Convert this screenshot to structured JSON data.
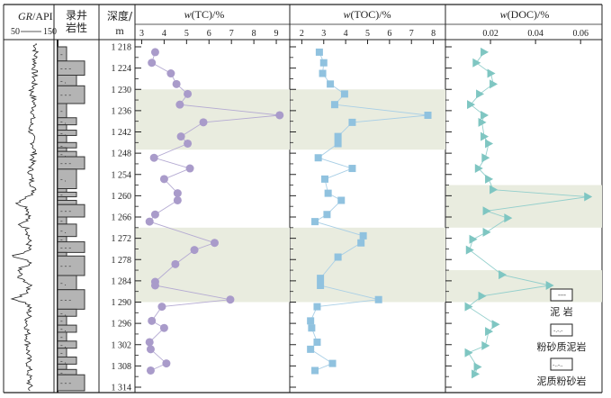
{
  "chart_data": {
    "type": "scatter",
    "title": "",
    "depth_axis": {
      "label_line1": "深度/",
      "label_line2": "m",
      "range": [
        1216,
        1316
      ],
      "ticks": [
        1218,
        1224,
        1230,
        1236,
        1242,
        1248,
        1254,
        1260,
        1266,
        1272,
        1278,
        1284,
        1290,
        1296,
        1302,
        1308,
        1314
      ],
      "tick_labels": [
        "1 218",
        "1 224",
        "1 230",
        "1 236",
        "1 242",
        "1 248",
        "1 254",
        "1 260",
        "1 266",
        "1 272",
        "1 278",
        "1 284",
        "1 290",
        "1 296",
        "1 302",
        "1 308",
        "1 314"
      ]
    },
    "gr_track": {
      "label_italic": "GR",
      "label_rest": "/API",
      "scale_min": "50",
      "scale_max": "150",
      "range": [
        50,
        150
      ]
    },
    "lithology_track": {
      "label_line1": "录井",
      "label_line2": "岩性"
    },
    "panels": [
      {
        "name": "TC",
        "title_prefix": "w",
        "title_rest": "(TC)/%",
        "xlim": [
          2.7,
          9.6
        ],
        "xticks": [
          3,
          4,
          5,
          6,
          7,
          8,
          9
        ],
        "marker": "circle",
        "color": "#a99bca",
        "line_color": "#b5abd3",
        "shaded_bands": [
          [
            1230,
            1247
          ],
          [
            1269,
            1290
          ]
        ],
        "points": [
          {
            "depth": 1219.5,
            "value": 3.6
          },
          {
            "depth": 1222.5,
            "value": 3.45
          },
          {
            "depth": 1225.5,
            "value": 4.3
          },
          {
            "depth": 1228.5,
            "value": 4.55
          },
          {
            "depth": 1231.3,
            "value": 5.05
          },
          {
            "depth": 1234.3,
            "value": 4.7
          },
          {
            "depth": 1237.3,
            "value": 9.15
          },
          {
            "depth": 1239.3,
            "value": 5.75
          },
          {
            "depth": 1243.3,
            "value": 4.75
          },
          {
            "depth": 1245.3,
            "value": 5.05
          },
          {
            "depth": 1249.3,
            "value": 3.55
          },
          {
            "depth": 1252.3,
            "value": 5.15
          },
          {
            "depth": 1255.3,
            "value": 4.0
          },
          {
            "depth": 1259.3,
            "value": 4.6
          },
          {
            "depth": 1261.3,
            "value": 4.6
          },
          {
            "depth": 1265.3,
            "value": 3.6
          },
          {
            "depth": 1267.3,
            "value": 3.35
          },
          {
            "depth": 1273.3,
            "value": 6.25
          },
          {
            "depth": 1275.3,
            "value": 5.35
          },
          {
            "depth": 1279.3,
            "value": 4.5
          },
          {
            "depth": 1284.3,
            "value": 3.6
          },
          {
            "depth": 1285.3,
            "value": 3.6
          },
          {
            "depth": 1289.3,
            "value": 6.95
          },
          {
            "depth": 1291.3,
            "value": 3.9
          },
          {
            "depth": 1295.3,
            "value": 3.45
          },
          {
            "depth": 1297.3,
            "value": 4.0
          },
          {
            "depth": 1301.3,
            "value": 3.35
          },
          {
            "depth": 1303.3,
            "value": 3.4
          },
          {
            "depth": 1307.3,
            "value": 4.1
          },
          {
            "depth": 1309.3,
            "value": 3.4
          }
        ]
      },
      {
        "name": "TOC",
        "title_prefix": "w",
        "title_rest": "(TOC)/%",
        "xlim": [
          1.45,
          8.55
        ],
        "xticks": [
          2,
          3,
          4,
          5,
          6,
          7,
          8
        ],
        "marker": "square",
        "color": "#90c2df",
        "line_color": "#a9cfe6",
        "shaded_bands": [
          [
            1230,
            1247
          ],
          [
            1269,
            1290
          ]
        ],
        "points": [
          {
            "depth": 1219.5,
            "value": 2.8
          },
          {
            "depth": 1222.5,
            "value": 3.0
          },
          {
            "depth": 1225.5,
            "value": 2.95
          },
          {
            "depth": 1228.5,
            "value": 3.3
          },
          {
            "depth": 1231.3,
            "value": 3.95
          },
          {
            "depth": 1234.3,
            "value": 3.5
          },
          {
            "depth": 1237.3,
            "value": 7.75
          },
          {
            "depth": 1239.3,
            "value": 4.3
          },
          {
            "depth": 1243.3,
            "value": 3.65
          },
          {
            "depth": 1245.3,
            "value": 3.65
          },
          {
            "depth": 1249.3,
            "value": 2.75
          },
          {
            "depth": 1252.3,
            "value": 4.3
          },
          {
            "depth": 1255.3,
            "value": 3.05
          },
          {
            "depth": 1259.3,
            "value": 3.2
          },
          {
            "depth": 1261.3,
            "value": 3.8
          },
          {
            "depth": 1265.3,
            "value": 3.15
          },
          {
            "depth": 1267.3,
            "value": 2.6
          },
          {
            "depth": 1271.3,
            "value": 4.8
          },
          {
            "depth": 1273.3,
            "value": 4.7
          },
          {
            "depth": 1277.3,
            "value": 3.65
          },
          {
            "depth": 1283.3,
            "value": 2.85
          },
          {
            "depth": 1285.3,
            "value": 2.85
          },
          {
            "depth": 1289.3,
            "value": 5.5
          },
          {
            "depth": 1291.3,
            "value": 2.7
          },
          {
            "depth": 1295.3,
            "value": 2.4
          },
          {
            "depth": 1297.3,
            "value": 2.45
          },
          {
            "depth": 1301.3,
            "value": 2.7
          },
          {
            "depth": 1303.3,
            "value": 2.4
          },
          {
            "depth": 1307.3,
            "value": 3.4
          },
          {
            "depth": 1309.3,
            "value": 2.6
          }
        ]
      },
      {
        "name": "DOC",
        "title_prefix": "w",
        "title_rest": "(DOC)/%",
        "xlim": [
          0.0,
          0.0695
        ],
        "xticks": [
          0.02,
          0.04,
          0.06
        ],
        "xtick_labels": [
          "0.02",
          "0.04",
          "0.06"
        ],
        "marker": "triangle-right",
        "color": "#7fc6c2",
        "line_color": "#93cfcc",
        "shaded_bands": [
          [
            1257,
            1269
          ],
          [
            1281,
            1290
          ]
        ],
        "points": [
          {
            "depth": 1219.5,
            "value": 0.0172
          },
          {
            "depth": 1222.5,
            "value": 0.0137
          },
          {
            "depth": 1225.5,
            "value": 0.0202
          },
          {
            "depth": 1228.5,
            "value": 0.0212
          },
          {
            "depth": 1231.3,
            "value": 0.0152
          },
          {
            "depth": 1234.3,
            "value": 0.0112
          },
          {
            "depth": 1237.3,
            "value": 0.0172
          },
          {
            "depth": 1239.3,
            "value": 0.0162
          },
          {
            "depth": 1243.3,
            "value": 0.0172
          },
          {
            "depth": 1245.3,
            "value": 0.0192
          },
          {
            "depth": 1249.3,
            "value": 0.0177
          },
          {
            "depth": 1252.3,
            "value": 0.0147
          },
          {
            "depth": 1255.3,
            "value": 0.0192
          },
          {
            "depth": 1258.3,
            "value": 0.0212
          },
          {
            "depth": 1260.3,
            "value": 0.0632
          },
          {
            "depth": 1264.3,
            "value": 0.0182
          },
          {
            "depth": 1266.3,
            "value": 0.0277
          },
          {
            "depth": 1270.3,
            "value": 0.0182
          },
          {
            "depth": 1272.3,
            "value": 0.0122
          },
          {
            "depth": 1275.3,
            "value": 0.0107
          },
          {
            "depth": 1282.3,
            "value": 0.0252
          },
          {
            "depth": 1285.3,
            "value": 0.0462
          },
          {
            "depth": 1288.3,
            "value": 0.0162
          },
          {
            "depth": 1291.3,
            "value": 0.0102
          },
          {
            "depth": 1296.3,
            "value": 0.0222
          },
          {
            "depth": 1298.3,
            "value": 0.0192
          },
          {
            "depth": 1302.3,
            "value": 0.0177
          },
          {
            "depth": 1304.3,
            "value": 0.0102
          },
          {
            "depth": 1308.3,
            "value": 0.0142
          },
          {
            "depth": 1310.3,
            "value": 0.0132
          }
        ]
      }
    ],
    "legend": {
      "placement": "bottom-right",
      "items": [
        {
          "label": "泥 岩",
          "pattern": "---"
        },
        {
          "label": "粉砂质泥岩",
          "pattern": "-.-.-"
        },
        {
          "label": "泥质粉砂岩",
          "pattern": "-..-.."
        }
      ]
    },
    "lithology_intervals": [
      {
        "top": 1218,
        "base": 1222,
        "type": "mudstone-narrow"
      },
      {
        "top": 1222,
        "base": 1226,
        "type": "mudstone"
      },
      {
        "top": 1226,
        "base": 1229,
        "type": "silty-mudstone"
      },
      {
        "top": 1229,
        "base": 1234,
        "type": "mudstone"
      },
      {
        "top": 1234,
        "base": 1238,
        "type": "mudstone-narrow"
      },
      {
        "top": 1238,
        "base": 1240,
        "type": "silty-mudstone"
      },
      {
        "top": 1240,
        "base": 1241.5,
        "type": "thin"
      },
      {
        "top": 1241.5,
        "base": 1243,
        "type": "silty-mudstone"
      },
      {
        "top": 1243,
        "base": 1245,
        "type": "thin"
      },
      {
        "top": 1245,
        "base": 1246.5,
        "type": "silty-mudstone"
      },
      {
        "top": 1246.5,
        "base": 1247.5,
        "type": "thin"
      },
      {
        "top": 1247.5,
        "base": 1249,
        "type": "silty-mudstone"
      },
      {
        "top": 1249,
        "base": 1252.5,
        "type": "mudstone"
      },
      {
        "top": 1252.5,
        "base": 1258,
        "type": "silty-mudstone"
      },
      {
        "top": 1258,
        "base": 1259,
        "type": "thin"
      },
      {
        "top": 1259,
        "base": 1260.3,
        "type": "silty-mudstone"
      },
      {
        "top": 1260.3,
        "base": 1261.3,
        "type": "thin"
      },
      {
        "top": 1261.3,
        "base": 1262.5,
        "type": "silty-mudstone"
      },
      {
        "top": 1262.5,
        "base": 1266,
        "type": "mudstone"
      },
      {
        "top": 1266,
        "base": 1268,
        "type": "mudstone-narrow"
      },
      {
        "top": 1268,
        "base": 1271.5,
        "type": "silty-mudstone"
      },
      {
        "top": 1271.5,
        "base": 1273,
        "type": "mudstone-narrow"
      },
      {
        "top": 1273,
        "base": 1276,
        "type": "mudstone"
      },
      {
        "top": 1276,
        "base": 1277,
        "type": "thin"
      },
      {
        "top": 1277,
        "base": 1282.5,
        "type": "mudstone"
      },
      {
        "top": 1282.5,
        "base": 1286.5,
        "type": "silty-mudstone"
      },
      {
        "top": 1286.5,
        "base": 1292,
        "type": "mudstone"
      },
      {
        "top": 1292,
        "base": 1294,
        "type": "silty-mudstone"
      },
      {
        "top": 1294,
        "base": 1296.5,
        "type": "mudstone-narrow"
      },
      {
        "top": 1296.5,
        "base": 1298.5,
        "type": "silty-mudstone"
      },
      {
        "top": 1298.5,
        "base": 1301,
        "type": "mudstone-narrow"
      },
      {
        "top": 1301,
        "base": 1303,
        "type": "silty-mudstone"
      },
      {
        "top": 1303,
        "base": 1305.5,
        "type": "mudstone-narrow"
      },
      {
        "top": 1305.5,
        "base": 1307.5,
        "type": "silty-mudstone"
      },
      {
        "top": 1307.5,
        "base": 1309,
        "type": "thin"
      },
      {
        "top": 1309,
        "base": 1310.5,
        "type": "silty-mudstone"
      },
      {
        "top": 1310.5,
        "base": 1315,
        "type": "mudstone"
      }
    ]
  }
}
